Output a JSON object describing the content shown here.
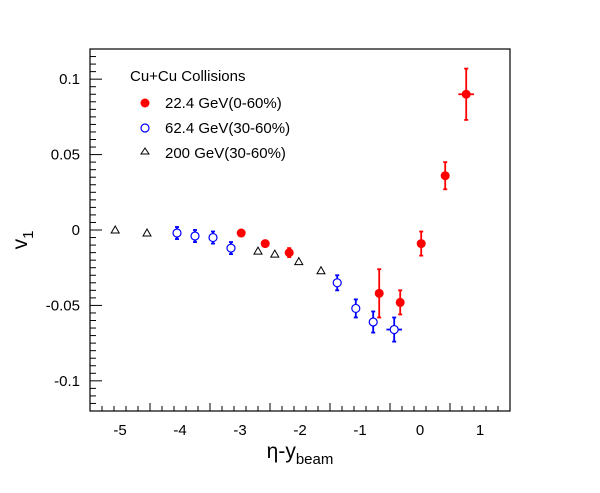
{
  "chart_data": {
    "type": "scatter",
    "xlabel": {
      "main": "η-y",
      "sub": "beam"
    },
    "ylabel": {
      "main": "v",
      "sub": "1"
    },
    "xlim": [
      -5.5,
      1.5
    ],
    "ylim": [
      -0.12,
      0.12
    ],
    "x_ticks": [
      -5,
      -4,
      -3,
      -2,
      -1,
      0,
      1
    ],
    "y_ticks": [
      -0.1,
      -0.05,
      0,
      0.05,
      0.1
    ],
    "y_tick_labels": [
      "-0.1",
      "-0.05",
      "0",
      "0.05",
      "0.1"
    ],
    "legend": {
      "title": "Cu+Cu Collisions",
      "position": "top-left",
      "entries": [
        {
          "label": "22.4 GeV(0-60%)",
          "series": 0
        },
        {
          "label": "62.4 GeV(30-60%)",
          "series": 1
        },
        {
          "label": "200  GeV(30-60%)",
          "series": 2
        }
      ]
    },
    "series": [
      {
        "name": "22.4 GeV(0-60%)",
        "marker": "filled-circle",
        "color": "#ff0000",
        "points": [
          {
            "x": -2.98,
            "y": -0.002,
            "yerr": 0.002,
            "xerr": 0
          },
          {
            "x": -2.58,
            "y": -0.009,
            "yerr": 0.002,
            "xerr": 0
          },
          {
            "x": -2.18,
            "y": -0.015,
            "yerr": 0.003,
            "xerr": 0
          },
          {
            "x": -0.68,
            "y": -0.042,
            "yerr": 0.016,
            "xerr": 0
          },
          {
            "x": -0.33,
            "y": -0.048,
            "yerr": 0.008,
            "xerr": 0
          },
          {
            "x": 0.02,
            "y": -0.009,
            "yerr": 0.008,
            "xerr": 0
          },
          {
            "x": 0.42,
            "y": 0.036,
            "yerr": 0.009,
            "xerr": 0
          },
          {
            "x": 0.77,
            "y": 0.09,
            "yerr": 0.017,
            "xerr": 0.13
          }
        ]
      },
      {
        "name": "62.4 GeV(30-60%)",
        "marker": "open-circle",
        "color": "#0000ff",
        "points": [
          {
            "x": -4.05,
            "y": -0.002,
            "yerr": 0.004,
            "xerr": 0
          },
          {
            "x": -3.75,
            "y": -0.004,
            "yerr": 0.004,
            "xerr": 0
          },
          {
            "x": -3.45,
            "y": -0.005,
            "yerr": 0.004,
            "xerr": 0
          },
          {
            "x": -3.15,
            "y": -0.012,
            "yerr": 0.004,
            "xerr": 0
          },
          {
            "x": -1.38,
            "y": -0.035,
            "yerr": 0.005,
            "xerr": 0
          },
          {
            "x": -1.07,
            "y": -0.052,
            "yerr": 0.006,
            "xerr": 0
          },
          {
            "x": -0.78,
            "y": -0.061,
            "yerr": 0.007,
            "xerr": 0
          },
          {
            "x": -0.43,
            "y": -0.066,
            "yerr": 0.008,
            "xerr": 0.13
          }
        ]
      },
      {
        "name": "200  GeV(30-60%)",
        "marker": "open-triangle",
        "color": "#000000",
        "points": [
          {
            "x": -5.08,
            "y": 0.0
          },
          {
            "x": -4.55,
            "y": -0.002
          },
          {
            "x": -2.7,
            "y": -0.014
          },
          {
            "x": -2.42,
            "y": -0.016
          },
          {
            "x": -2.02,
            "y": -0.021
          },
          {
            "x": -1.65,
            "y": -0.027
          }
        ]
      }
    ]
  }
}
